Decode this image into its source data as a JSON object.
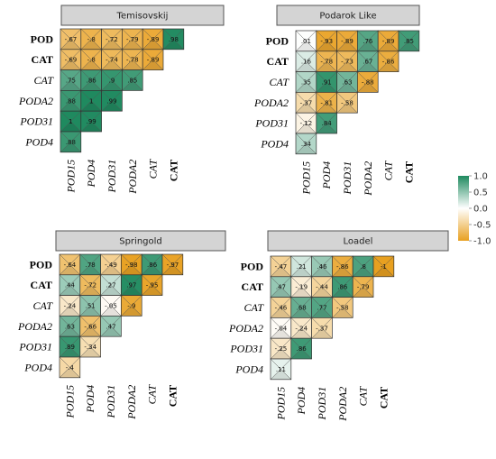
{
  "chart_data": {
    "type": "heatmap",
    "color_scale": {
      "low_color": "#E8A020",
      "mid_color": "#FFFFFF",
      "high_color": "#1F8A5F",
      "range": [
        -1,
        1
      ],
      "ticks": [
        "1.0",
        "0.5",
        "0.0",
        "-0.5",
        "-1.0"
      ]
    },
    "panels": [
      {
        "title": "Temisovskij",
        "rows": [
          "POD",
          "CAT",
          "CAT",
          "PODA2",
          "POD31",
          "POD4"
        ],
        "row_bold": [
          true,
          true,
          false,
          false,
          false,
          false
        ],
        "cols": [
          "POD15",
          "POD4",
          "POD31",
          "PODA2",
          "CAT",
          "CAT"
        ],
        "col_bold": [
          false,
          false,
          false,
          false,
          false,
          true
        ],
        "values": [
          [
            -0.67,
            -0.8,
            -0.72,
            -0.79,
            -0.89,
            0.98
          ],
          [
            -0.69,
            -0.8,
            -0.74,
            -0.78,
            -0.89
          ],
          [
            0.75,
            0.86,
            0.9,
            0.85
          ],
          [
            0.88,
            1,
            0.99
          ],
          [
            1,
            0.99
          ],
          [
            0.88
          ]
        ]
      },
      {
        "title": "Podarok Like",
        "rows": [
          "POD",
          "CAT",
          "CAT",
          "PODA2",
          "POD31",
          "POD4"
        ],
        "row_bold": [
          true,
          true,
          false,
          false,
          false,
          false
        ],
        "cols": [
          "POD15",
          "POD4",
          "POD31",
          "PODA2",
          "CAT",
          "CAT"
        ],
        "col_bold": [
          false,
          false,
          false,
          false,
          false,
          true
        ],
        "values": [
          [
            0.01,
            -0.93,
            -0.89,
            0.76,
            -0.89,
            0.85
          ],
          [
            0.16,
            -0.78,
            -0.73,
            0.67,
            -0.86
          ],
          [
            0.35,
            0.91,
            0.63,
            -0.88
          ],
          [
            -0.37,
            -0.81,
            -0.58
          ],
          [
            -0.12,
            0.84
          ],
          [
            0.34
          ]
        ]
      },
      {
        "title": "Springold",
        "rows": [
          "POD",
          "CAT",
          "CAT",
          "PODA2",
          "POD31",
          "POD4"
        ],
        "row_bold": [
          true,
          true,
          false,
          false,
          false,
          false
        ],
        "cols": [
          "POD15",
          "POD4",
          "POD31",
          "PODA2",
          "CAT",
          "CAT"
        ],
        "col_bold": [
          false,
          false,
          false,
          false,
          false,
          true
        ],
        "values": [
          [
            -0.64,
            0.78,
            -0.49,
            -0.98,
            0.86,
            -0.97
          ],
          [
            0.44,
            -0.72,
            0.27,
            0.97,
            -0.95
          ],
          [
            -0.24,
            0.51,
            -0.05,
            -0.9
          ],
          [
            0.63,
            -0.66,
            0.47
          ],
          [
            0.89,
            -0.34
          ],
          [
            -0.4
          ]
        ]
      },
      {
        "title": "Loadel",
        "rows": [
          "POD",
          "CAT",
          "CAT",
          "PODA2",
          "POD31",
          "POD4"
        ],
        "row_bold": [
          true,
          true,
          false,
          false,
          false,
          false
        ],
        "cols": [
          "POD15",
          "POD4",
          "POD31",
          "PODA2",
          "CAT",
          "CAT"
        ],
        "col_bold": [
          false,
          false,
          false,
          false,
          false,
          true
        ],
        "values": [
          [
            -0.47,
            0.21,
            0.46,
            -0.86,
            0.8,
            -1
          ],
          [
            0.47,
            -0.19,
            -0.44,
            0.86,
            -0.79
          ],
          [
            -0.46,
            0.68,
            0.77,
            -0.58
          ],
          [
            -0.04,
            -0.24,
            -0.37
          ],
          [
            -0.25,
            0.86
          ],
          [
            0.11
          ]
        ]
      }
    ]
  }
}
